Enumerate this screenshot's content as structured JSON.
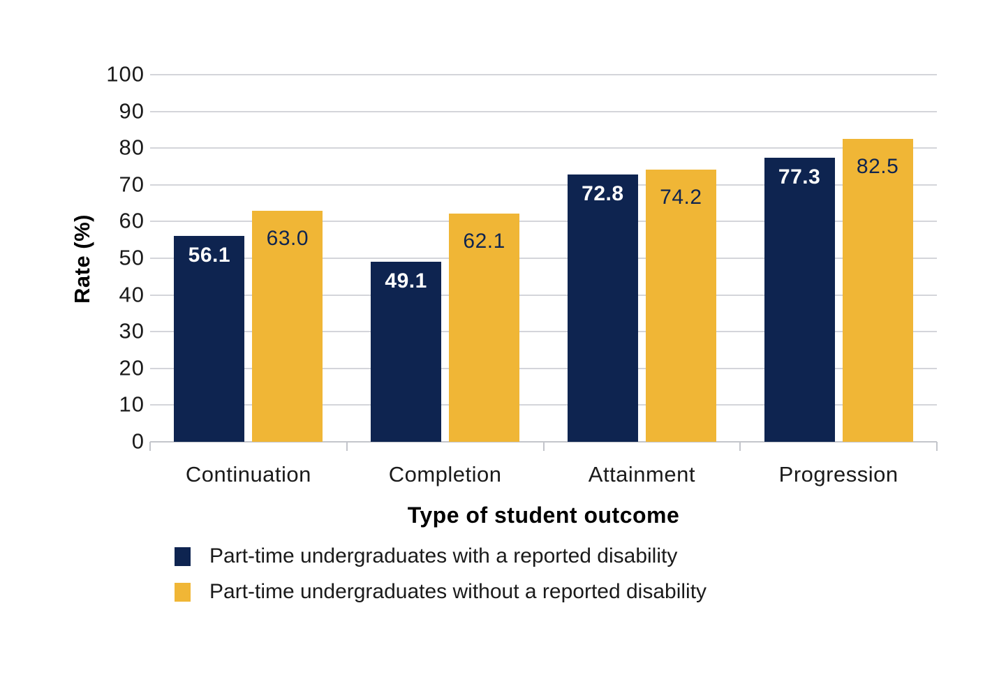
{
  "chart_data": {
    "type": "bar",
    "categories": [
      "Continuation",
      "Completion",
      "Attainment",
      "Progression"
    ],
    "series": [
      {
        "name": "Part-time undergraduates with a reported disability",
        "color": "#0e2450",
        "label_color": "#ffffff",
        "values": [
          56.1,
          49.1,
          72.8,
          77.3
        ]
      },
      {
        "name": "Part-time undergraduates without a reported disability",
        "color": "#f0b636",
        "label_color": "#0e2450",
        "values": [
          63.0,
          62.1,
          74.2,
          82.5
        ]
      }
    ],
    "xlabel": "Type of student outcome",
    "ylabel": "Rate (%)",
    "ylim": [
      0,
      100
    ],
    "ytick_step": 10,
    "ytick_labels": [
      "0",
      "10",
      "20",
      "30",
      "40",
      "50",
      "60",
      "70",
      "80",
      "90",
      "100"
    ],
    "value_label_decimals": 1,
    "grid": "horizontal",
    "legend_position": "bottom-left"
  }
}
